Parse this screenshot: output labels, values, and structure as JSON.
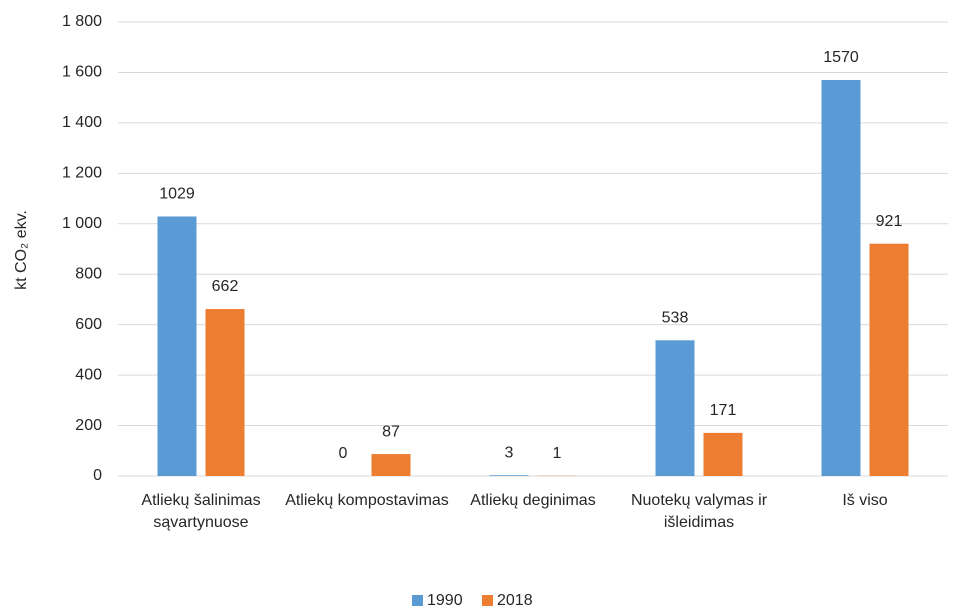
{
  "chart_data": {
    "type": "bar",
    "y_label": "kt CO₂ ekv.",
    "categories": [
      "Atliekų šalinimas sąvartynuose",
      "Atliekų kompostavimas",
      "Atliekų deginimas",
      "Nuotekų valymas ir išleidimas",
      "Iš viso"
    ],
    "series": [
      {
        "name": "1990",
        "color": "#5b9bd5",
        "values": [
          1029,
          0,
          3,
          538,
          1570
        ]
      },
      {
        "name": "2018",
        "color": "#ed7d31",
        "values": [
          662,
          87,
          1,
          171,
          921
        ]
      }
    ],
    "ylim": [
      0,
      1800
    ],
    "yticks": [
      0,
      200,
      400,
      600,
      800,
      {
        "value": 1000,
        "label": "1 000"
      },
      {
        "value": 1200,
        "label": "1 200"
      },
      {
        "value": 1400,
        "label": "1 400"
      },
      {
        "value": 1600,
        "label": "1 600"
      },
      {
        "value": 1800,
        "label": "1 800"
      }
    ],
    "grid": true,
    "legend": "bottom"
  }
}
